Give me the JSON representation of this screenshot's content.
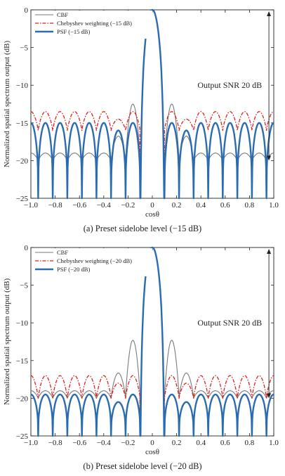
{
  "chart_data": [
    {
      "type": "line",
      "caption": "(a) Preset sidelobe level (−15 dB)",
      "xlabel": "cosθ",
      "ylabel": "Normalized spatial spectrum output (dB)",
      "xlim": [
        -1.0,
        1.0
      ],
      "ylim": [
        -25,
        0
      ],
      "xticks": [
        "−1.0",
        "−0.8",
        "−0.6",
        "−0.4",
        "−0.2",
        "0",
        "0.2",
        "0.4",
        "0.6",
        "0.8",
        "1.0"
      ],
      "yticks": [
        "0",
        "−5",
        "−10",
        "−15",
        "−20",
        "−25"
      ],
      "legend_position": "top-left",
      "annotation": "Output SNR 20 dB",
      "annotation_arrow": {
        "x": 0.96,
        "y_top": 0,
        "y_bottom": -20
      },
      "series": [
        {
          "name": "CBF",
          "color": "#7a7a7a",
          "style": "solid",
          "mainlobe_halfwidth": 0.1,
          "first_sidelobe_db": -12.5,
          "sidelobe_level_db": -19,
          "floor_db": -20,
          "sidelobe_count": 15
        },
        {
          "name": "Chebyshev weighting (−15 dB)",
          "color": "#e02020",
          "style": "dashdot",
          "mainlobe_halfwidth": 0.1,
          "first_sidelobe_db": -13.5,
          "sidelobe_level_db": -13.5,
          "floor_db": -16,
          "sidelobe_count": 15
        },
        {
          "name": "PSF (−15 dB)",
          "color": "#2b6cb0",
          "style": "thick",
          "mainlobe_halfwidth": 0.1,
          "first_sidelobe_db": -15,
          "sidelobe_level_db": -15,
          "floor_db": -25,
          "sidelobe_count": 15
        }
      ]
    },
    {
      "type": "line",
      "caption": "(b) Preset sidelobe level (−20 dB)",
      "xlabel": "cosθ",
      "ylabel": "Normalized spatial spectrum output (dB)",
      "xlim": [
        -1.0,
        1.0
      ],
      "ylim": [
        -25,
        0
      ],
      "xticks": [
        "−1.0",
        "−0.8",
        "−0.6",
        "−0.4",
        "−0.2",
        "0",
        "0.2",
        "0.4",
        "0.6",
        "0.8",
        "1.0"
      ],
      "yticks": [
        "0",
        "−5",
        "−10",
        "−15",
        "−20",
        "−25"
      ],
      "legend_position": "top-left",
      "annotation": "Output SNR 20 dB",
      "annotation_arrow": {
        "x": 0.96,
        "y_top": 0,
        "y_bottom": -20
      },
      "series": [
        {
          "name": "CBF",
          "color": "#7a7a7a",
          "style": "solid",
          "mainlobe_halfwidth": 0.1,
          "first_sidelobe_db": -12.3,
          "sidelobe_level_db": -19,
          "floor_db": -20,
          "sidelobe_count": 15
        },
        {
          "name": "Chebyshev weighting (−20 dB)",
          "color": "#e02020",
          "style": "dashdot",
          "mainlobe_halfwidth": 0.1,
          "first_sidelobe_db": -17,
          "sidelobe_level_db": -17,
          "floor_db": -20,
          "sidelobe_count": 15
        },
        {
          "name": "PSF (−20 dB)",
          "color": "#2b6cb0",
          "style": "thick",
          "mainlobe_halfwidth": 0.1,
          "first_sidelobe_db": -19.5,
          "sidelobe_level_db": -19.5,
          "floor_db": -25,
          "sidelobe_count": 15
        }
      ]
    }
  ]
}
